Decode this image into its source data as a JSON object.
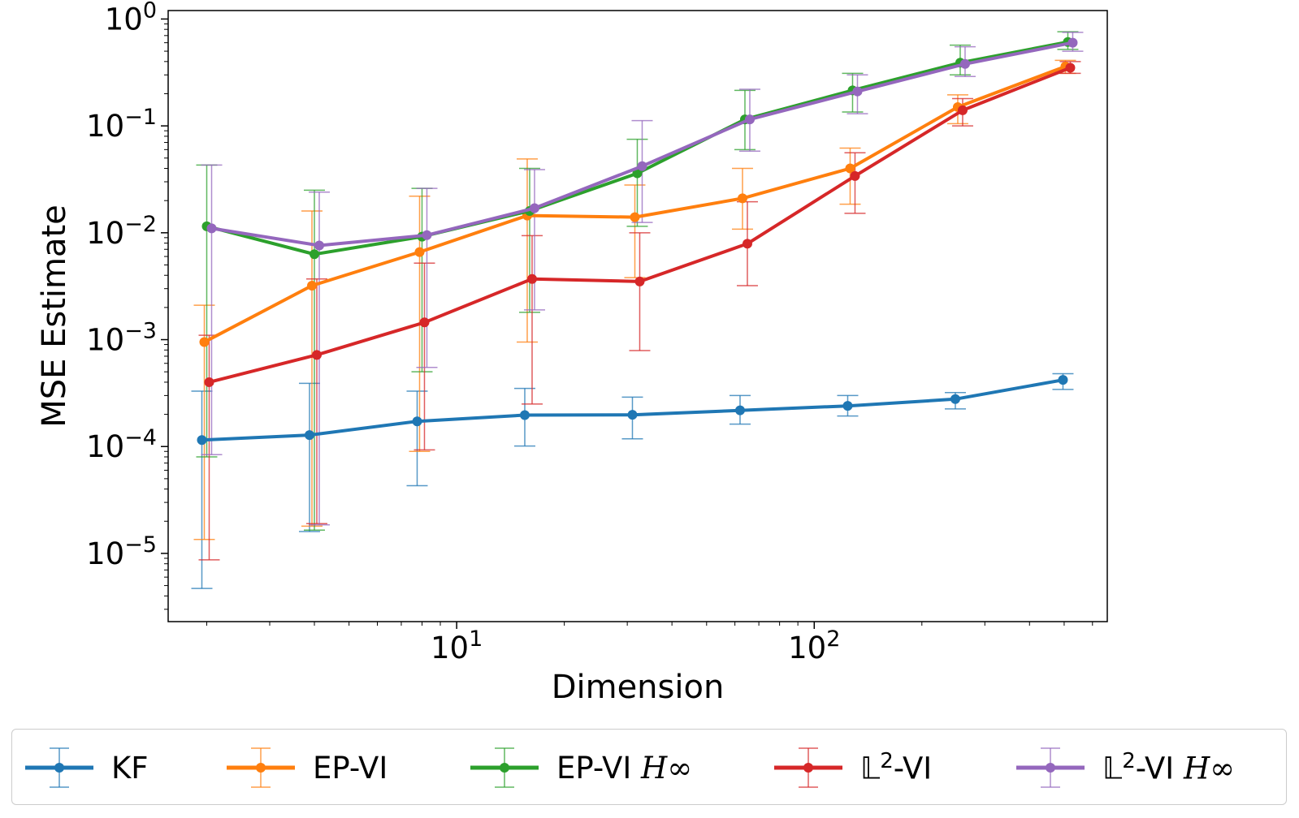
{
  "chart_data": {
    "type": "line",
    "xscale": "log",
    "yscale": "log",
    "title": "",
    "xlabel": "Dimension",
    "ylabel": "MSE Estimate",
    "xlim": [
      1.56,
      660
    ],
    "ylim": [
      2.3e-06,
      1.2
    ],
    "x": [
      2,
      4,
      8,
      16,
      32,
      64,
      128,
      256,
      512
    ],
    "x_ticks": [
      {
        "value": 10,
        "mantissa": "10",
        "exponent": "1"
      },
      {
        "value": 100,
        "mantissa": "10",
        "exponent": "2"
      }
    ],
    "y_ticks": [
      {
        "value": 1,
        "mantissa": "10",
        "exponent": "0"
      },
      {
        "value": 0.1,
        "mantissa": "10",
        "exponent": "−1"
      },
      {
        "value": 0.01,
        "mantissa": "10",
        "exponent": "−2"
      },
      {
        "value": 0.001,
        "mantissa": "10",
        "exponent": "−3"
      },
      {
        "value": 0.0001,
        "mantissa": "10",
        "exponent": "−4"
      },
      {
        "value": 1e-05,
        "mantissa": "10",
        "exponent": "−5"
      }
    ],
    "series": [
      {
        "name": "KF",
        "color": "#1f77b4",
        "values": [
          0.000115,
          0.000128,
          0.000172,
          0.000197,
          0.000198,
          0.000218,
          0.00024,
          0.000278,
          0.00042
        ],
        "err_low": [
          4.7e-06,
          1.6e-05,
          4.3e-05,
          0.000101,
          0.000118,
          0.000162,
          0.000193,
          0.000225,
          0.000342
        ],
        "err_high": [
          0.00033,
          0.00039,
          0.00033,
          0.00035,
          0.00029,
          0.0003,
          0.0003,
          0.00032,
          0.00048
        ]
      },
      {
        "name": "EP-VI",
        "color": "#ff7f0e",
        "values": [
          0.00095,
          0.0032,
          0.0066,
          0.0145,
          0.014,
          0.021,
          0.04,
          0.15,
          0.36
        ],
        "err_low": [
          1.35e-05,
          1.8e-05,
          9e-05,
          0.00095,
          0.0038,
          0.0108,
          0.0185,
          0.105,
          0.31
        ],
        "err_high": [
          0.0021,
          0.016,
          0.022,
          0.049,
          0.028,
          0.04,
          0.062,
          0.195,
          0.41
        ]
      },
      {
        "name": "EP-VI H∞",
        "color": "#2ca02c",
        "values": [
          0.0115,
          0.0063,
          0.0092,
          0.016,
          0.036,
          0.115,
          0.215,
          0.39,
          0.61
        ],
        "err_low": [
          8e-05,
          1.65e-05,
          0.0005,
          0.0018,
          0.0115,
          0.06,
          0.135,
          0.3,
          0.52
        ],
        "err_high": [
          0.043,
          0.025,
          0.026,
          0.04,
          0.075,
          0.215,
          0.31,
          0.57,
          0.76
        ]
      },
      {
        "name": "𝕃²-VI",
        "color": "#d62728",
        "values": [
          0.0004,
          0.00072,
          0.00145,
          0.0037,
          0.0035,
          0.0079,
          0.034,
          0.14,
          0.35
        ],
        "err_low": [
          8.7e-06,
          1.9e-05,
          9.3e-05,
          0.00025,
          0.00079,
          0.0032,
          0.0152,
          0.1,
          0.31
        ],
        "err_high": [
          0.0011,
          0.0037,
          0.0052,
          0.0094,
          0.01,
          0.0195,
          0.056,
          0.18,
          0.4
        ]
      },
      {
        "name": "𝕃²-VI H∞",
        "color": "#9467bd",
        "values": [
          0.011,
          0.0076,
          0.0095,
          0.017,
          0.042,
          0.115,
          0.21,
          0.38,
          0.6
        ],
        "err_low": [
          8.4e-05,
          1.85e-05,
          0.00055,
          0.0019,
          0.0125,
          0.058,
          0.13,
          0.29,
          0.5
        ],
        "err_high": [
          0.043,
          0.024,
          0.026,
          0.039,
          0.112,
          0.22,
          0.3,
          0.55,
          0.75
        ]
      }
    ],
    "legend": {
      "placement": "below",
      "entries": [
        {
          "name": "KF",
          "base": "KF",
          "sup": "",
          "tail": "",
          "math": ""
        },
        {
          "name": "EP-VI",
          "base": "EP-VI",
          "sup": "",
          "tail": "",
          "math": ""
        },
        {
          "name": "EP-VI H∞",
          "base": "EP-VI ",
          "sup": "",
          "tail": "",
          "math": "H∞"
        },
        {
          "name": "𝕃²-VI",
          "base": "𝕃",
          "sup": "2",
          "tail": "-VI",
          "math": ""
        },
        {
          "name": "𝕃²-VI H∞",
          "base": "𝕃",
          "sup": "2",
          "tail": "-VI ",
          "math": "H∞"
        }
      ]
    }
  }
}
